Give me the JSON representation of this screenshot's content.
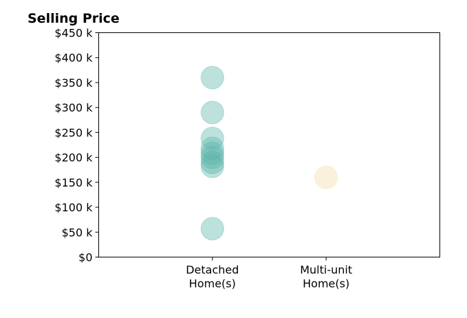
{
  "chart_data": {
    "type": "scatter",
    "title": "Selling Price",
    "xlabel": "",
    "ylabel": "",
    "categories": [
      [
        "Detached",
        "Home(s)"
      ],
      [
        "Multi-unit",
        "Home(s)"
      ]
    ],
    "xlim": [
      -1,
      2
    ],
    "ylim": [
      0,
      450000
    ],
    "yticks": [
      0,
      50000,
      100000,
      150000,
      200000,
      250000,
      300000,
      350000,
      400000,
      450000
    ],
    "ytick_labels": [
      "$0",
      "$50 k",
      "$100 k",
      "$150 k",
      "$200 k",
      "$250 k",
      "$300 k",
      "$350 k",
      "$400 k",
      "$450 k"
    ],
    "grid": false,
    "series": [
      {
        "category_index": 0,
        "color": "#5bb5aa",
        "values": [
          360000,
          290000,
          238000,
          218000,
          208000,
          200000,
          190000,
          182000,
          57000
        ]
      },
      {
        "category_index": 1,
        "color": "#f3dcaa",
        "values": [
          160000
        ]
      }
    ]
  }
}
